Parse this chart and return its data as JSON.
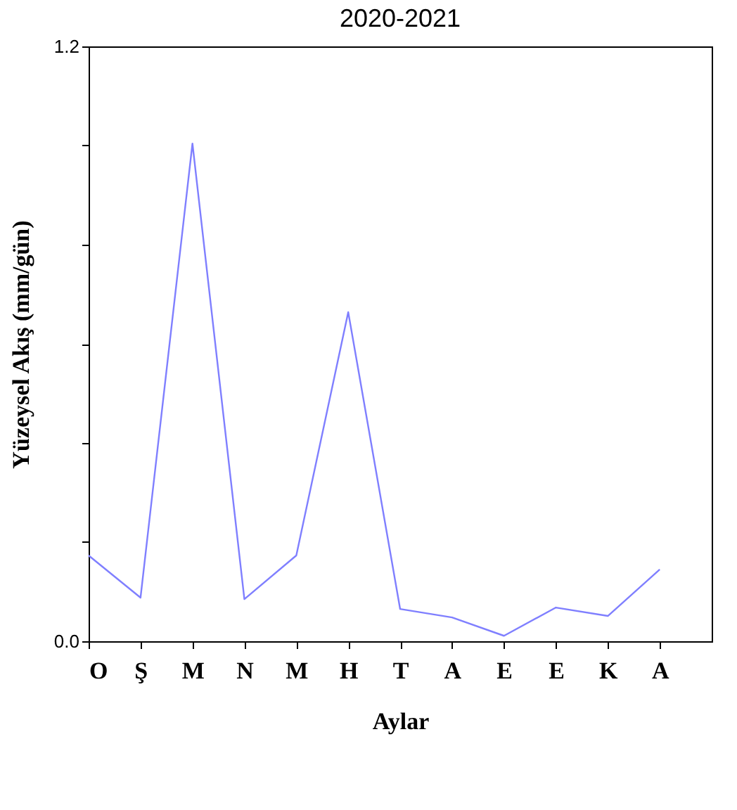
{
  "chart_data": {
    "type": "line",
    "title": "2020-2021",
    "xlabel": "Aylar",
    "ylabel": "Yüzeysel Akış (mm/gün)",
    "categories": [
      "O",
      "Ş",
      "M",
      "N",
      "M",
      "H",
      "T",
      "A",
      "E",
      "E",
      "K",
      "A"
    ],
    "series": [
      {
        "color": "#7f7fff",
        "values": [
          0.173,
          0.088,
          1.004,
          0.085,
          0.173,
          0.664,
          0.065,
          0.048,
          0.011,
          0.068,
          0.051,
          0.145
        ]
      }
    ],
    "ylim": [
      0,
      1.2
    ],
    "yticks": [
      {
        "value": 0,
        "label": "0.0"
      },
      {
        "value": 0.2,
        "label": null
      },
      {
        "value": 0.4,
        "label": null
      },
      {
        "value": 0.6,
        "label": null
      },
      {
        "value": 0.8,
        "label": null
      },
      {
        "value": 1.0,
        "label": null
      },
      {
        "value": 1.2,
        "label": "1.2"
      }
    ],
    "grid": false,
    "marker": "none",
    "line_style": "solid"
  }
}
